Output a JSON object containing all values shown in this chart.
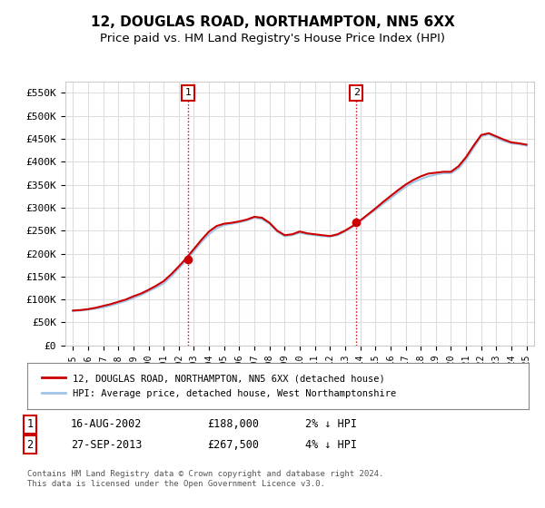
{
  "title": "12, DOUGLAS ROAD, NORTHAMPTON, NN5 6XX",
  "subtitle": "Price paid vs. HM Land Registry's House Price Index (HPI)",
  "title_fontsize": 11,
  "subtitle_fontsize": 9.5,
  "ylim": [
    0,
    575000
  ],
  "yticks": [
    0,
    50000,
    100000,
    150000,
    200000,
    250000,
    300000,
    350000,
    400000,
    450000,
    500000,
    550000
  ],
  "ytick_labels": [
    "£0",
    "£50K",
    "£100K",
    "£150K",
    "£200K",
    "£250K",
    "£300K",
    "£350K",
    "£400K",
    "£450K",
    "£500K",
    "£550K"
  ],
  "xlim_start": 1994.5,
  "xlim_end": 2025.5,
  "xticks": [
    1995,
    1996,
    1997,
    1998,
    1999,
    2000,
    2001,
    2002,
    2003,
    2004,
    2005,
    2006,
    2007,
    2008,
    2009,
    2010,
    2011,
    2012,
    2013,
    2014,
    2015,
    2016,
    2017,
    2018,
    2019,
    2020,
    2021,
    2022,
    2023,
    2024,
    2025
  ],
  "hpi_color": "#a0c4e8",
  "price_color": "#cc0000",
  "vline_color": "#cc0000",
  "point1_x": 2002.62,
  "point1_y": 188000,
  "point2_x": 2013.74,
  "point2_y": 267500,
  "annotation1_label": "1",
  "annotation2_label": "2",
  "legend_line1": "12, DOUGLAS ROAD, NORTHAMPTON, NN5 6XX (detached house)",
  "legend_line2": "HPI: Average price, detached house, West Northamptonshire",
  "table_row1": [
    "1",
    "16-AUG-2002",
    "£188,000",
    "2% ↓ HPI"
  ],
  "table_row2": [
    "2",
    "27-SEP-2013",
    "£267,500",
    "4% ↓ HPI"
  ],
  "footer": "Contains HM Land Registry data © Crown copyright and database right 2024.\nThis data is licensed under the Open Government Licence v3.0.",
  "bg_color": "#ffffff",
  "grid_color": "#dddddd"
}
